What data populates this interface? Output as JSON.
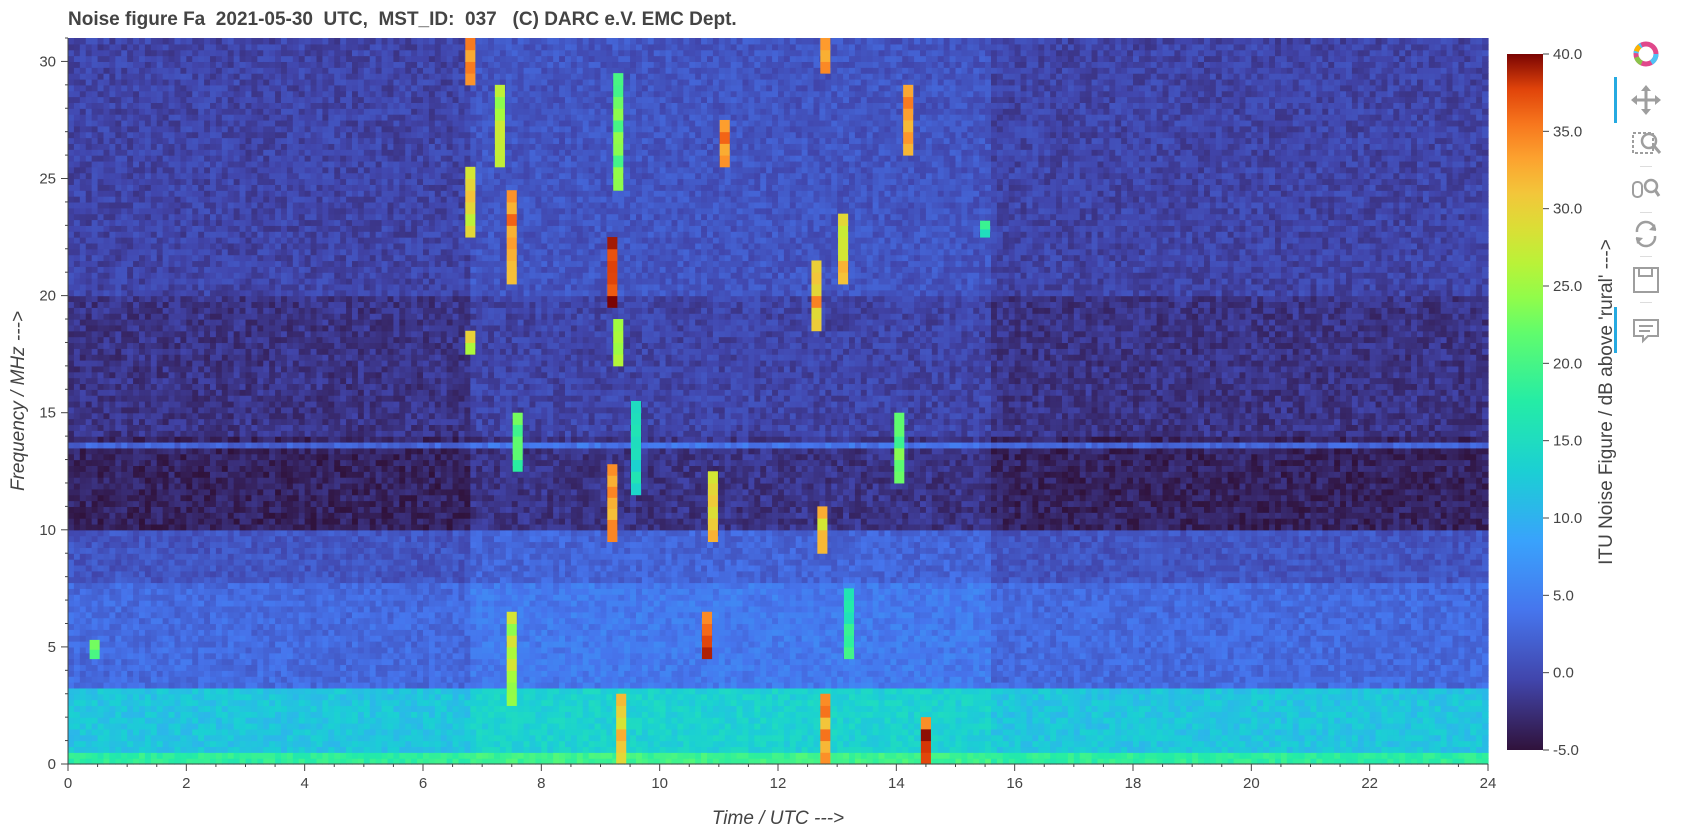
{
  "title": "Noise figure Fa  2021-05-30  UTC,  MST_ID:  037   (C) DARC e.V. EMC Dept.",
  "chart_data": {
    "type": "heatmap",
    "title": "Noise figure Fa  2021-05-30  UTC,  MST_ID:  037   (C) DARC e.V. EMC Dept.",
    "xlabel": "Time / UTC --->",
    "ylabel": "Frequency / MHz --->",
    "colorbar_label": "ITU Noise Figure / dB above 'rural' --->",
    "xlim": [
      0,
      24
    ],
    "ylim": [
      0,
      31
    ],
    "clim": [
      -5,
      40
    ],
    "colormap": "turbo",
    "x_ticks": [
      "0",
      "2",
      "4",
      "6",
      "8",
      "10",
      "12",
      "14",
      "16",
      "18",
      "20",
      "22",
      "24"
    ],
    "y_ticks": [
      "0",
      "5",
      "10",
      "15",
      "20",
      "25",
      "30"
    ],
    "colorbar_ticks": [
      "-5.0",
      "0.0",
      "5.0",
      "10.0",
      "15.0",
      "20.0",
      "25.0",
      "30.0",
      "35.0",
      "40.0"
    ],
    "background_profile": [
      {
        "f_lo": 0,
        "f_hi": 0.5,
        "value": 18
      },
      {
        "f_lo": 0.5,
        "f_hi": 3.2,
        "value": 12
      },
      {
        "f_lo": 3.2,
        "f_hi": 7.6,
        "value": 3
      },
      {
        "f_lo": 7.6,
        "f_hi": 9.8,
        "value": 1
      },
      {
        "f_lo": 9.8,
        "f_hi": 14,
        "value": -3.5
      },
      {
        "f_lo": 14,
        "f_hi": 20,
        "value": -2
      },
      {
        "f_lo": 20,
        "f_hi": 31,
        "value": -0.5
      }
    ],
    "hot_spots": [
      {
        "t": 6.8,
        "f_lo": 29,
        "f_hi": 31,
        "value": 33
      },
      {
        "t": 6.8,
        "f_lo": 22.5,
        "f_hi": 25.5,
        "value": 29
      },
      {
        "t": 6.8,
        "f_lo": 17.5,
        "f_hi": 18.5,
        "value": 28
      },
      {
        "t": 7.3,
        "f_lo": 25.5,
        "f_hi": 29,
        "value": 27
      },
      {
        "t": 7.5,
        "f_lo": 20.5,
        "f_hi": 24.5,
        "value": 34
      },
      {
        "t": 7.5,
        "f_lo": 2.5,
        "f_hi": 6.5,
        "value": 26
      },
      {
        "t": 7.6,
        "f_lo": 12.5,
        "f_hi": 15,
        "value": 20
      },
      {
        "t": 9.2,
        "f_lo": 19.5,
        "f_hi": 22.5,
        "value": 38
      },
      {
        "t": 9.2,
        "f_lo": 9.5,
        "f_hi": 12.8,
        "value": 33
      },
      {
        "t": 9.3,
        "f_lo": 24.5,
        "f_hi": 29.5,
        "value": 22
      },
      {
        "t": 9.3,
        "f_lo": 17,
        "f_hi": 19,
        "value": 27
      },
      {
        "t": 9.35,
        "f_lo": 0,
        "f_hi": 3,
        "value": 31
      },
      {
        "t": 9.6,
        "f_lo": 11.5,
        "f_hi": 15.5,
        "value": 15
      },
      {
        "t": 10.9,
        "f_lo": 9.5,
        "f_hi": 12.5,
        "value": 31
      },
      {
        "t": 10.8,
        "f_lo": 4.5,
        "f_hi": 6.5,
        "value": 37
      },
      {
        "t": 11.1,
        "f_lo": 25.5,
        "f_hi": 27.5,
        "value": 34
      },
      {
        "t": 12.65,
        "f_lo": 18.5,
        "f_hi": 21.5,
        "value": 32
      },
      {
        "t": 12.75,
        "f_lo": 9,
        "f_hi": 11,
        "value": 30
      },
      {
        "t": 12.8,
        "f_lo": 0,
        "f_hi": 3,
        "value": 34
      },
      {
        "t": 12.8,
        "f_lo": 29.5,
        "f_hi": 31,
        "value": 34
      },
      {
        "t": 13.1,
        "f_lo": 20.5,
        "f_hi": 23.5,
        "value": 30
      },
      {
        "t": 13.2,
        "f_lo": 4.5,
        "f_hi": 7.5,
        "value": 17
      },
      {
        "t": 14.05,
        "f_lo": 12,
        "f_hi": 15,
        "value": 22
      },
      {
        "t": 14.2,
        "f_lo": 26,
        "f_hi": 29,
        "value": 33
      },
      {
        "t": 14.5,
        "f_lo": 0,
        "f_hi": 2,
        "value": 37
      },
      {
        "t": 15.5,
        "f_lo": 22.5,
        "f_hi": 23.2,
        "value": 18
      },
      {
        "t": 0.45,
        "f_lo": 4.5,
        "f_hi": 5.3,
        "value": 22
      }
    ]
  },
  "toolbar": {
    "items": [
      {
        "name": "bokeh-logo-icon"
      },
      {
        "name": "pan-icon"
      },
      {
        "name": "box-zoom-icon"
      },
      {
        "name": "wheel-zoom-icon"
      },
      {
        "name": "reset-icon"
      },
      {
        "name": "save-icon"
      },
      {
        "name": "hover-icon"
      }
    ]
  }
}
